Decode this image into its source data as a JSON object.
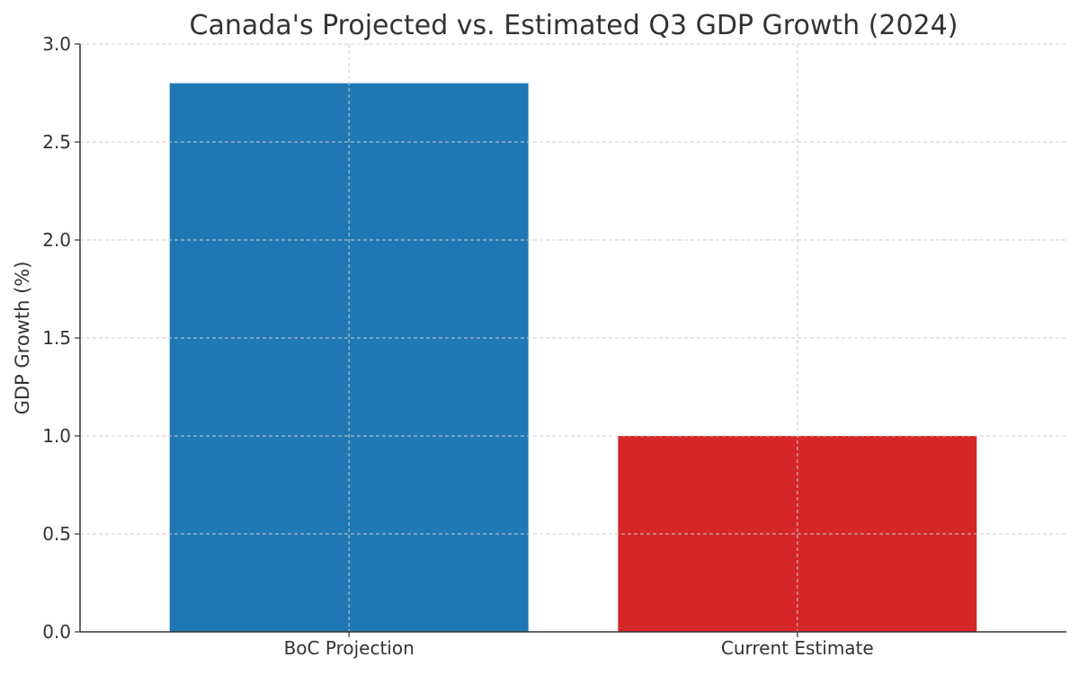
{
  "chart_data": {
    "type": "bar",
    "title": "Canada's Projected vs. Estimated Q3 GDP Growth (2024)",
    "xlabel": "",
    "ylabel": "GDP Growth (%)",
    "categories": [
      "BoC Projection",
      "Current Estimate"
    ],
    "values": [
      2.8,
      1.0
    ],
    "colors": [
      "#1f77b4",
      "#d62728"
    ],
    "ylim": [
      0,
      3.0
    ],
    "yticks": [
      0.0,
      0.5,
      1.0,
      1.5,
      2.0,
      2.5,
      3.0
    ],
    "ytick_labels": [
      "0.0",
      "0.5",
      "1.0",
      "1.5",
      "2.0",
      "2.5",
      "3.0"
    ],
    "grid": true,
    "grid_color": "#cccccc",
    "axis_color": "#333333"
  }
}
